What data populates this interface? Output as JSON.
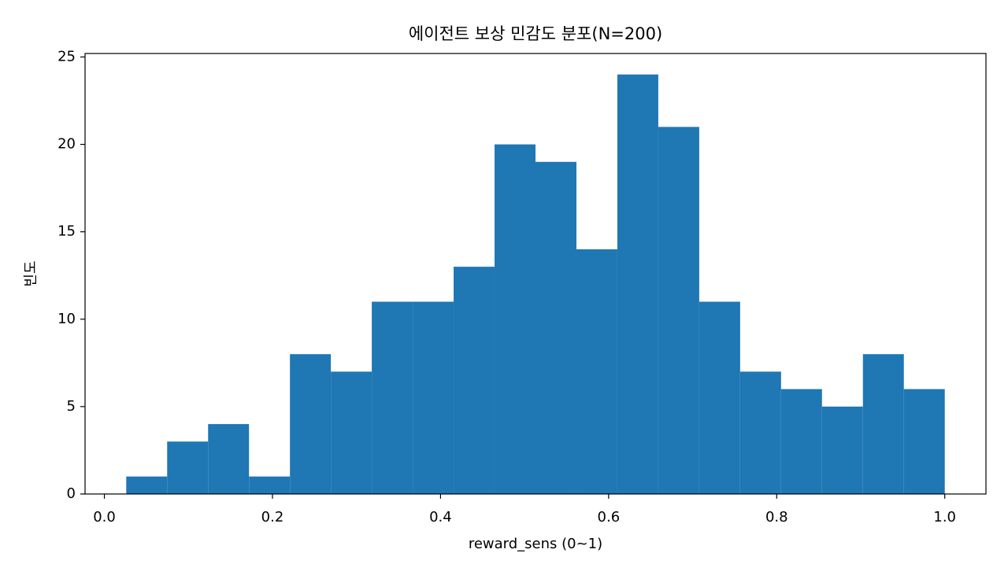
{
  "chart_data": {
    "type": "histogram",
    "title": "에이전트 보상 민감도 분포(N=200)",
    "x_label": "reward_sens (0~1)",
    "y_label": "빈도",
    "bins": [
      0.026,
      0.0747,
      0.1234,
      0.1721,
      0.2208,
      0.2695,
      0.3182,
      0.3669,
      0.4156,
      0.4643,
      0.513,
      0.5617,
      0.6104,
      0.6591,
      0.7078,
      0.7565,
      0.8052,
      0.8539,
      0.9026,
      0.9513,
      1.0
    ],
    "values": [
      1,
      3,
      4,
      1,
      8,
      7,
      11,
      11,
      13,
      20,
      19,
      14,
      24,
      21,
      11,
      7,
      6,
      5,
      8,
      6
    ],
    "color": "#1f77b4",
    "xlim": [
      -0.023,
      1.049
    ],
    "ylim": [
      0,
      25.2
    ],
    "xticks": [
      {
        "value": 0,
        "label": "0.0"
      },
      0.2,
      0.4,
      0.6,
      0.8,
      {
        "value": 1,
        "label": "1.0"
      }
    ],
    "yticks": [
      0,
      5,
      10,
      15,
      20,
      25
    ],
    "grid": false
  }
}
